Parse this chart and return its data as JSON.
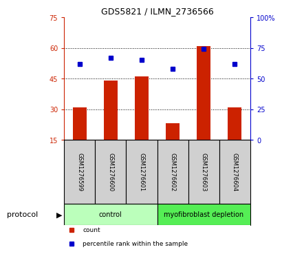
{
  "title": "GDS5821 / ILMN_2736566",
  "samples": [
    "GSM1276599",
    "GSM1276600",
    "GSM1276601",
    "GSM1276602",
    "GSM1276603",
    "GSM1276604"
  ],
  "counts": [
    31,
    44,
    46,
    23,
    61,
    31
  ],
  "percentiles": [
    62,
    67,
    65,
    58,
    74,
    62
  ],
  "bar_color": "#cc2200",
  "dot_color": "#0000cc",
  "ylim_left": [
    15,
    75
  ],
  "ylim_right": [
    0,
    100
  ],
  "yticks_left": [
    15,
    30,
    45,
    60,
    75
  ],
  "yticks_right": [
    0,
    25,
    50,
    75,
    100
  ],
  "ytick_labels_right": [
    "0",
    "25",
    "50",
    "75",
    "100%"
  ],
  "grid_yticks": [
    30,
    45,
    60
  ],
  "protocol_groups": [
    {
      "label": "control",
      "indices": [
        0,
        1,
        2
      ],
      "color": "#bbffbb"
    },
    {
      "label": "myofibroblast depletion",
      "indices": [
        3,
        4,
        5
      ],
      "color": "#55ee55"
    }
  ],
  "protocol_label": "protocol",
  "legend_items": [
    {
      "color": "#cc2200",
      "label": "count"
    },
    {
      "color": "#0000cc",
      "label": "percentile rank within the sample"
    }
  ],
  "bg_color": "#ffffff",
  "sample_bg_color": "#d0d0d0"
}
